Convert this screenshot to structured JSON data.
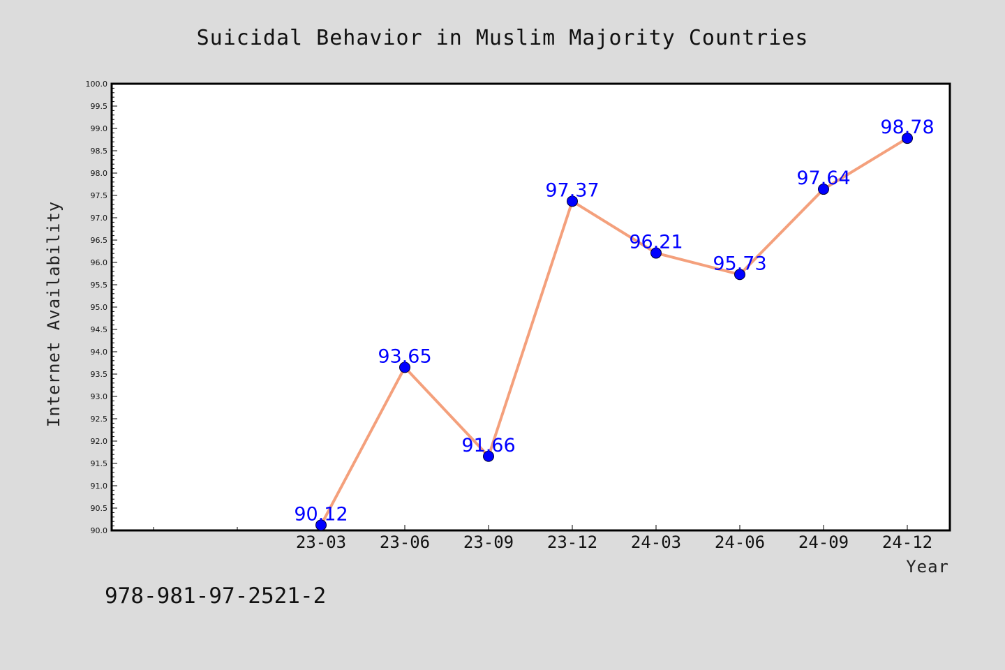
{
  "chart_data": {
    "type": "line",
    "title": "Suicidal Behavior in Muslim Majority Countries",
    "xlabel": "Year",
    "ylabel": "Internet Availability",
    "categories": [
      "23-03",
      "23-06",
      "23-09",
      "23-12",
      "24-03",
      "24-06",
      "24-09",
      "24-12"
    ],
    "series": [
      {
        "values": [
          90.12,
          93.65,
          91.66,
          97.37,
          96.21,
          95.73,
          97.64,
          98.78
        ],
        "labels": [
          "90.12",
          "93.65",
          "91.66",
          "97.37",
          "96.21",
          "95.73",
          "97.64",
          "98.78"
        ]
      }
    ],
    "ylim": [
      90.0,
      100.0
    ],
    "yticks": [
      "90.0",
      "90.5",
      "91.0",
      "91.5",
      "92.0",
      "92.5",
      "93.0",
      "93.5",
      "94.0",
      "94.5",
      "95.0",
      "95.5",
      "96.0",
      "96.5",
      "97.0",
      "97.5",
      "98.0",
      "98.5",
      "99.0",
      "99.5",
      "100.0"
    ],
    "grid": false,
    "legend": "none",
    "line_color": "#f4a07c",
    "marker_color": "#0000ff",
    "label_color": "#0000ff"
  },
  "footnote": "978-981-97-2521-2"
}
